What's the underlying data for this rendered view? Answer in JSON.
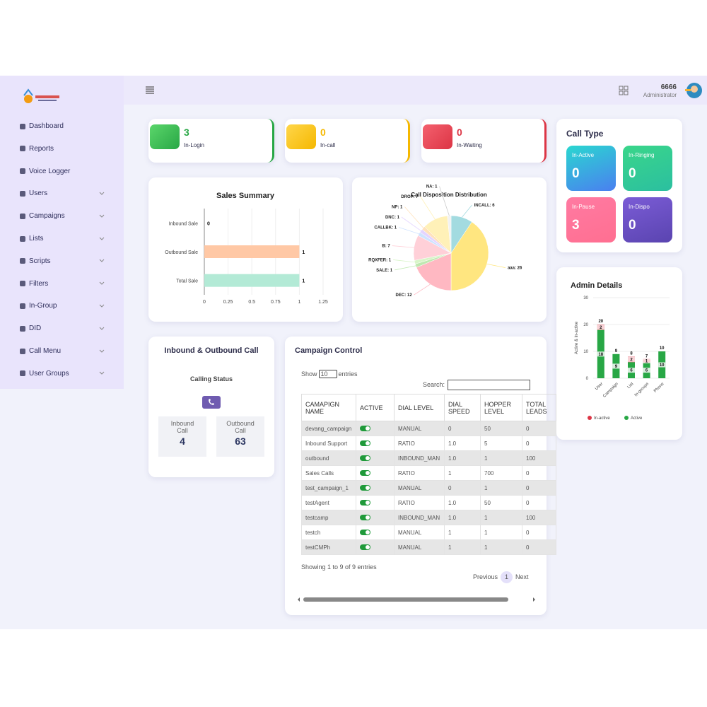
{
  "header": {
    "user_id": "6666",
    "role": "Administrator"
  },
  "sidebar": {
    "menu": [
      {
        "label": "Dashboard",
        "submenu": false
      },
      {
        "label": "Reports",
        "submenu": false
      },
      {
        "label": "Voice Logger",
        "submenu": false
      },
      {
        "label": "Users",
        "submenu": true
      },
      {
        "label": "Campaigns",
        "submenu": true
      },
      {
        "label": "Lists",
        "submenu": true
      },
      {
        "label": "Scripts",
        "submenu": true
      },
      {
        "label": "Filters",
        "submenu": true
      },
      {
        "label": "In-Group",
        "submenu": true
      },
      {
        "label": "DID",
        "submenu": true
      },
      {
        "label": "Call Menu",
        "submenu": true
      },
      {
        "label": "User Groups",
        "submenu": true
      }
    ]
  },
  "stats": [
    {
      "value": "3",
      "label": "In-Login"
    },
    {
      "value": "0",
      "label": "In-call"
    },
    {
      "value": "0",
      "label": "In-Waiting"
    }
  ],
  "call_type": {
    "title": "Call Type",
    "cards": [
      {
        "label": "In-Active",
        "value": "0"
      },
      {
        "label": "In-Ringing",
        "value": "0"
      },
      {
        "label": "In-Pause",
        "value": "3"
      },
      {
        "label": "In-Dispo",
        "value": "0"
      }
    ]
  },
  "calls": {
    "title": "Inbound & Outbound Call",
    "subtitle": "Calling Status",
    "boxes": [
      {
        "label": "Inbound Call",
        "value": "4"
      },
      {
        "label": "Outbound Call",
        "value": "63"
      }
    ]
  },
  "campaign_control": {
    "title": "Campaign Control",
    "show": "Show",
    "page_size": "10",
    "entries": "entries",
    "search": "Search:",
    "columns": [
      "CAMAPIGN NAME",
      "ACTIVE",
      "DIAL LEVEL",
      "DIAL SPEED",
      "HOPPER LEVEL",
      "TOTAL LEADS"
    ],
    "rows": [
      [
        "devang_campaign",
        true,
        "MANUAL",
        "0",
        "50",
        "0"
      ],
      [
        "Inbound Support",
        true,
        "RATIO",
        "1.0",
        "5",
        "0"
      ],
      [
        "outbound",
        true,
        "INBOUND_MAN",
        "1.0",
        "1",
        "100"
      ],
      [
        "Sales Calls",
        true,
        "RATIO",
        "1",
        "700",
        "0"
      ],
      [
        "test_campaign_1",
        true,
        "MANUAL",
        "0",
        "1",
        "0"
      ],
      [
        "testAgent",
        true,
        "RATIO",
        "1.0",
        "50",
        "0"
      ],
      [
        "testcamp",
        true,
        "INBOUND_MAN",
        "1.0",
        "1",
        "100"
      ],
      [
        "testch",
        true,
        "MANUAL",
        "1",
        "1",
        "0"
      ],
      [
        "testCMPh",
        true,
        "MANUAL",
        "1",
        "1",
        "0"
      ]
    ],
    "info": "Showing 1 to 9 of 9 entries",
    "previous": "Previous",
    "page": "1",
    "next": "Next"
  },
  "chart_data": [
    {
      "type": "hbar",
      "title": "Sales Summary",
      "categories": [
        "Inbound Sale",
        "Outbound Sale",
        "Total Sale"
      ],
      "values": [
        0,
        1,
        1
      ],
      "colors": [
        "#ffc8a5",
        "#ffc8a5",
        "#b3ead6"
      ],
      "xlim": [
        0,
        1.25
      ],
      "xticks": [
        0,
        0.25,
        0.5,
        0.75,
        1,
        1.25
      ],
      "grid": true
    },
    {
      "type": "pie",
      "title": "Call Disposition Distribution",
      "values": [
        6,
        26,
        12,
        1,
        1,
        7,
        1,
        1,
        1,
        7,
        1
      ],
      "value_labels": [
        "INCALL: 6",
        "aaa: 26",
        "DEC: 12",
        "SALE: 1",
        "RQXFER: 1",
        "B: 7",
        "CALLBK: 1",
        "DNC: 1",
        "NP: 1",
        "DROP: 7",
        "NA: 1"
      ],
      "colors": [
        "#a3dbe0",
        "#ffe680",
        "#ffb8c2",
        "#bfe8b0",
        "#d8f5c8",
        "#ffd0d8",
        "#cfe3ff",
        "#e4d4ff",
        "#ffe2bc",
        "#fff1b8",
        "#f2f2f2"
      ]
    },
    {
      "type": "stacked_bar",
      "title": "Admin Details",
      "y_label": "Active & In-active",
      "categories": [
        "User",
        "Campaign",
        "List",
        "In-groups",
        "Phone"
      ],
      "series": [
        {
          "name": "In-active",
          "color": "#dc3545",
          "values": [
            2,
            0,
            2,
            1,
            0
          ]
        },
        {
          "name": "Active",
          "color": "#28a745",
          "values": [
            18,
            9,
            6,
            6,
            10
          ]
        }
      ],
      "totals": [
        20,
        9,
        8,
        7,
        10
      ],
      "ylim": [
        0,
        30
      ],
      "yticks": [
        0,
        10,
        20,
        30
      ],
      "legend": "bottom"
    }
  ]
}
